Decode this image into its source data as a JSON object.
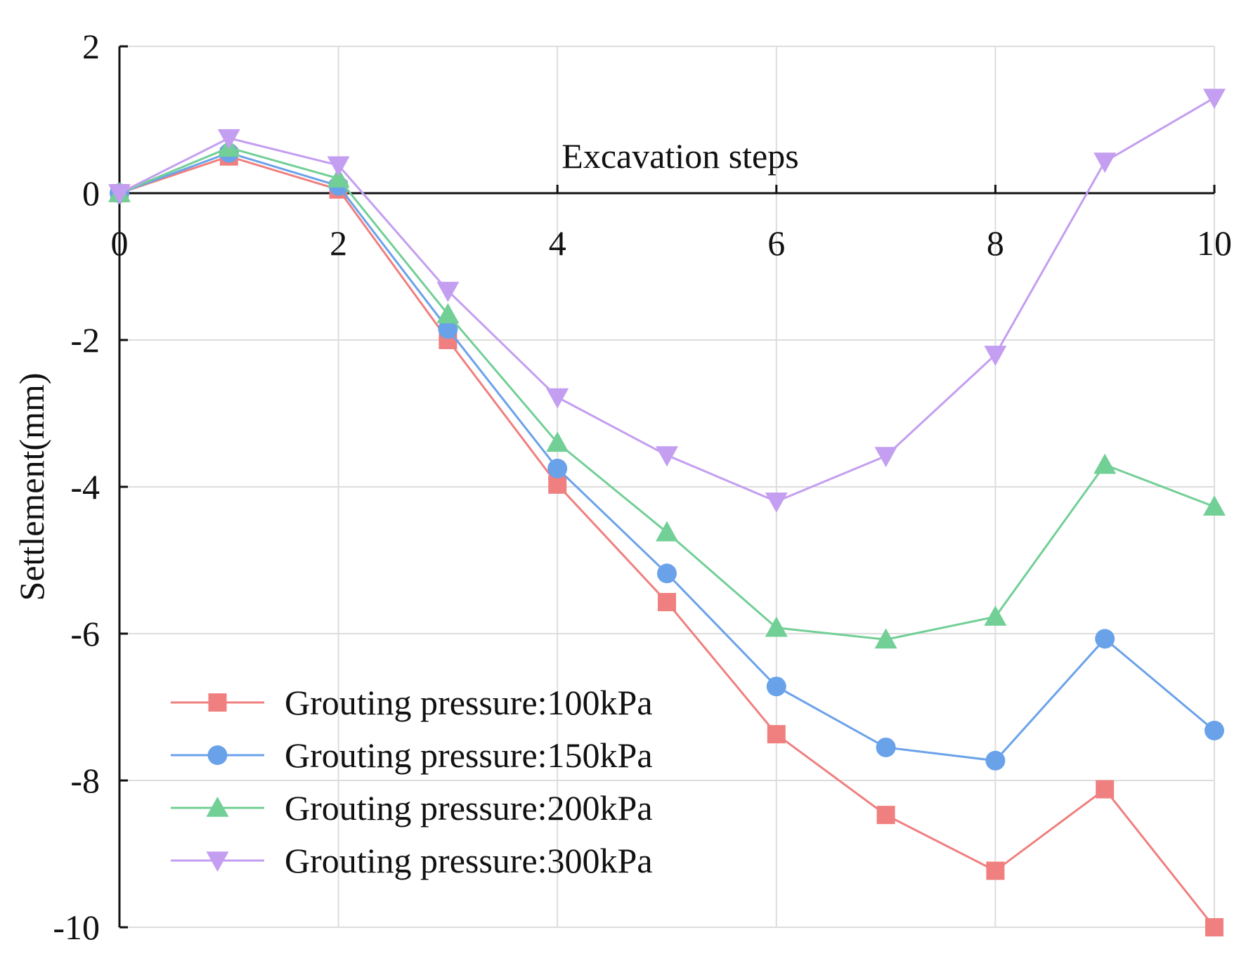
{
  "chart_data": {
    "type": "line",
    "title": "",
    "xlabel": "Excavation steps",
    "ylabel": "Settlement(mm)",
    "xlim": [
      0,
      10
    ],
    "ylim": [
      -10,
      2
    ],
    "x_ticks": [
      0,
      2,
      4,
      6,
      8,
      10
    ],
    "y_ticks": [
      2,
      0,
      -2,
      -4,
      -6,
      -8,
      -10
    ],
    "grid": true,
    "legend_position": "bottom-left",
    "x": [
      0,
      1,
      2,
      3,
      4,
      5,
      6,
      7,
      8,
      9,
      10
    ],
    "series": [
      {
        "name": "Grouting pressure:100kPa",
        "color": "#f07f7f",
        "marker": "square",
        "values": [
          0,
          0.5,
          0.05,
          -2.0,
          -3.97,
          -5.57,
          -7.37,
          -8.47,
          -9.23,
          -8.12,
          -10.0
        ]
      },
      {
        "name": "Grouting pressure:150kPa",
        "color": "#6aa2ea",
        "marker": "circle",
        "values": [
          0,
          0.55,
          0.1,
          -1.85,
          -3.75,
          -5.18,
          -6.72,
          -7.55,
          -7.73,
          -6.07,
          -7.32
        ]
      },
      {
        "name": "Grouting pressure:200kPa",
        "color": "#72cf96",
        "marker": "triangle-up",
        "values": [
          0,
          0.62,
          0.2,
          -1.65,
          -3.4,
          -4.62,
          -5.92,
          -6.08,
          -5.77,
          -3.7,
          -4.27
        ]
      },
      {
        "name": "Grouting pressure:300kPa",
        "color": "#c49ef0",
        "marker": "triangle-down",
        "values": [
          0,
          0.75,
          0.38,
          -1.33,
          -2.78,
          -3.57,
          -4.2,
          -3.58,
          -2.2,
          0.43,
          1.3
        ]
      }
    ]
  }
}
